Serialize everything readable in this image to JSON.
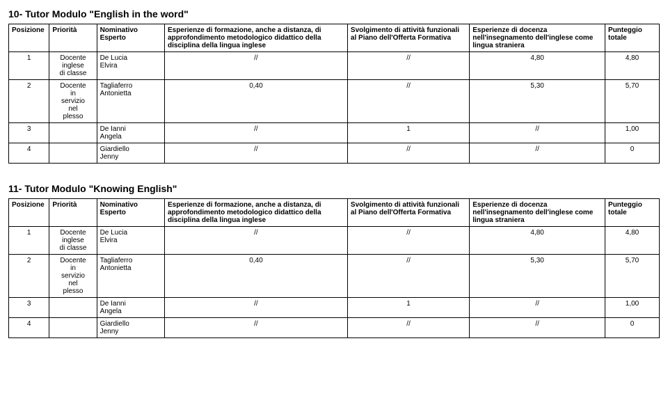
{
  "tables": [
    {
      "title": "10- Tutor Modulo \"English in the word\"",
      "columns": {
        "posizione": "Posizione",
        "priorita": "Priorità",
        "nominativo_label": "Nominativo",
        "nominativo_sub": "Esperto",
        "esperienze_l1": "Esperienze di formazione, anche a distanza, di",
        "esperienze_l2": "approfondimento metodologico didattico della",
        "esperienze_l3": "disciplina della lingua inglese",
        "svolgimento_l1": "Svolgimento di attività funzionali",
        "svolgimento_l2": "al Piano dell'Offerta Formativa",
        "docenza_l1": "Esperienze di docenza",
        "docenza_l2": "nell'insegnamento dell'inglese come",
        "docenza_l3": "lingua straniera",
        "punteggio_l1": "Punteggio",
        "punteggio_l2": "totale"
      },
      "rows": [
        {
          "pos": "1",
          "pri_l1": "Docente",
          "pri_l2": "inglese",
          "pri_l3": "di classe",
          "nom_l1": "De Lucia",
          "nom_l2": "Elvira",
          "exp": "//",
          "svo": "//",
          "doc": "4,80",
          "pun": "4,80"
        },
        {
          "pos": "2",
          "pri_l1": "Docente",
          "pri_l2": "in",
          "pri_l3": "servizio",
          "pri_l4": "nel",
          "pri_l5": "plesso",
          "nom_l1": "Tagliaferro",
          "nom_l2": "Antonietta",
          "exp": "0,40",
          "svo": "//",
          "doc": "5,30",
          "pun": "5,70"
        },
        {
          "pos": "3",
          "pri_l1": "",
          "nom_l1": "De Ianni",
          "nom_l2": "Angela",
          "exp": "//",
          "svo": "1",
          "doc": "//",
          "pun": "1,00"
        },
        {
          "pos": "4",
          "pri_l1": "",
          "nom_l1": "Giardiello",
          "nom_l2": "Jenny",
          "exp": "//",
          "svo": "//",
          "doc": "//",
          "pun": "0"
        }
      ]
    },
    {
      "title": "11- Tutor Modulo \"Knowing English\"",
      "columns": {
        "posizione": "Posizione",
        "priorita": "Priorità",
        "nominativo_label": "Nominativo",
        "nominativo_sub": "Esperto",
        "esperienze_l1": "Esperienze di formazione, anche a distanza, di",
        "esperienze_l2": "approfondimento metodologico didattico della",
        "esperienze_l3": "disciplina della lingua inglese",
        "svolgimento_l1": "Svolgimento di attività funzionali",
        "svolgimento_l2": "al Piano dell'Offerta Formativa",
        "docenza_l1": "Esperienze di docenza",
        "docenza_l2": "nell'insegnamento dell'inglese come",
        "docenza_l3": "lingua straniera",
        "punteggio_l1": "Punteggio",
        "punteggio_l2": "totale"
      },
      "rows": [
        {
          "pos": "1",
          "pri_l1": "Docente",
          "pri_l2": "inglese",
          "pri_l3": "di classe",
          "nom_l1": "De Lucia",
          "nom_l2": "Elvira",
          "exp": "//",
          "svo": "//",
          "doc": "4,80",
          "pun": "4,80"
        },
        {
          "pos": "2",
          "pri_l1": "Docente",
          "pri_l2": "in",
          "pri_l3": "servizio",
          "pri_l4": "nel",
          "pri_l5": "plesso",
          "nom_l1": "Tagliaferro",
          "nom_l2": "Antonietta",
          "exp": "0,40",
          "svo": "//",
          "doc": "5,30",
          "pun": "5,70"
        },
        {
          "pos": "3",
          "pri_l1": "",
          "nom_l1": "De Ianni",
          "nom_l2": "Angela",
          "exp": "//",
          "svo": "1",
          "doc": "//",
          "pun": "1,00"
        },
        {
          "pos": "4",
          "pri_l1": "",
          "nom_l1": "Giardiello",
          "nom_l2": "Jenny",
          "exp": "//",
          "svo": "//",
          "doc": "//",
          "pun": "0"
        }
      ]
    }
  ]
}
